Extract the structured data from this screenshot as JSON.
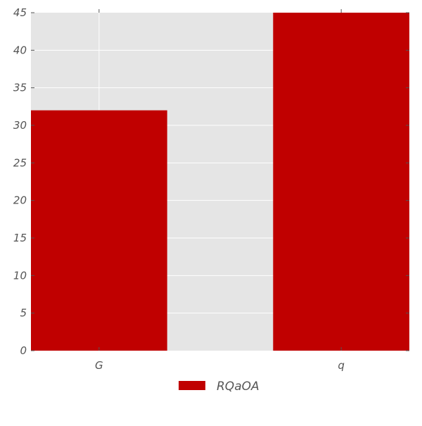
{
  "chart_data": {
    "type": "bar",
    "categories": [
      "G",
      "q"
    ],
    "series": [
      {
        "name": "RQaOA",
        "values": [
          32,
          45
        ],
        "color": "#c00000"
      }
    ],
    "ylim": [
      0,
      45
    ],
    "yticks": [
      "0",
      "5",
      "10",
      "15",
      "20",
      "25",
      "30",
      "35",
      "40",
      "45"
    ],
    "grid": true,
    "plot_background": "#e5e5e5",
    "grid_color": "#ffffff",
    "legend_position": "bottom-center"
  }
}
